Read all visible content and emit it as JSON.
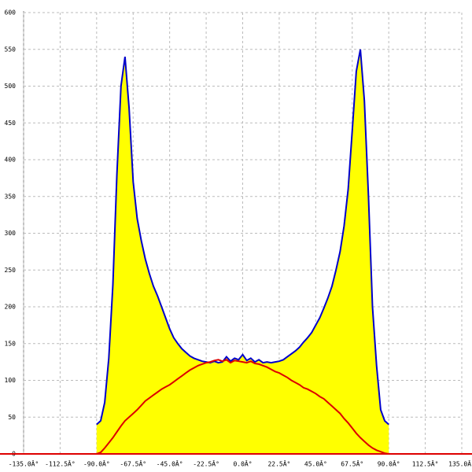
{
  "chart_data": {
    "type": "area",
    "x": [
      -90,
      -87.5,
      -85,
      -82.5,
      -80,
      -77.5,
      -75,
      -72.5,
      -70,
      -67.5,
      -65,
      -62.5,
      -60,
      -57.5,
      -55,
      -52.5,
      -50,
      -47.5,
      -45,
      -42.5,
      -40,
      -37.5,
      -35,
      -32.5,
      -30,
      -27.5,
      -25,
      -22.5,
      -20,
      -17.5,
      -15,
      -12.5,
      -10,
      -7.5,
      -5,
      -2.5,
      0,
      2.5,
      5,
      7.5,
      10,
      12.5,
      15,
      17.5,
      20,
      22.5,
      25,
      27.5,
      30,
      32.5,
      35,
      37.5,
      40,
      42.5,
      45,
      47.5,
      50,
      52.5,
      55,
      57.5,
      60,
      62.5,
      65,
      67.5,
      70,
      72.5,
      75,
      77.5,
      80,
      82.5,
      85,
      87.5,
      90
    ],
    "series": [
      {
        "color": "#0000cc",
        "fill": "#ffff00",
        "values": [
          40,
          45,
          70,
          130,
          230,
          380,
          500,
          540,
          470,
          370,
          320,
          290,
          265,
          245,
          228,
          215,
          200,
          185,
          170,
          158,
          150,
          143,
          138,
          133,
          130,
          128,
          126,
          125,
          124,
          126,
          124,
          125,
          132,
          126,
          130,
          128,
          135,
          127,
          130,
          125,
          128,
          124,
          125,
          124,
          125,
          126,
          128,
          132,
          136,
          140,
          145,
          152,
          158,
          165,
          175,
          185,
          198,
          212,
          228,
          250,
          275,
          310,
          360,
          440,
          520,
          550,
          480,
          350,
          200,
          120,
          60,
          45,
          40
        ]
      },
      {
        "color": "#dd0000",
        "values": [
          0,
          2,
          8,
          15,
          22,
          30,
          38,
          45,
          50,
          55,
          60,
          66,
          72,
          76,
          80,
          84,
          88,
          91,
          94,
          98,
          102,
          106,
          110,
          114,
          117,
          120,
          122,
          124,
          125,
          127,
          128,
          126,
          128,
          124,
          127,
          126,
          125,
          124,
          126,
          123,
          122,
          120,
          118,
          115,
          112,
          110,
          107,
          104,
          100,
          97,
          94,
          90,
          88,
          85,
          82,
          78,
          75,
          70,
          65,
          60,
          55,
          48,
          42,
          35,
          28,
          22,
          17,
          12,
          8,
          5,
          3,
          1,
          0
        ]
      }
    ],
    "xlim": [
      -135,
      135
    ],
    "xticks": [
      {
        "value": -135,
        "label": "-135.0Â°"
      },
      {
        "value": -112.5,
        "label": "-112.5Â°"
      },
      {
        "value": -90,
        "label": "-90.0Â°"
      },
      {
        "value": -67.5,
        "label": "-67.5Â°"
      },
      {
        "value": -45,
        "label": "-45.0Â°"
      },
      {
        "value": -22.5,
        "label": "-22.5Â°"
      },
      {
        "value": 0,
        "label": "0.0Â°"
      },
      {
        "value": 22.5,
        "label": "22.5Â°"
      },
      {
        "value": 45,
        "label": "45.0Â°"
      },
      {
        "value": 67.5,
        "label": "67.5Â°"
      },
      {
        "value": 90,
        "label": "90.0Â°"
      },
      {
        "value": 112.5,
        "label": "112.5Â°"
      },
      {
        "value": 135,
        "label": "135.0Â°"
      }
    ],
    "ylim": [
      0,
      600
    ],
    "yticks": [
      0,
      50,
      100,
      150,
      200,
      250,
      300,
      350,
      400,
      450,
      500,
      550,
      600
    ],
    "grid": true,
    "baseline_color": "#dd0000"
  }
}
